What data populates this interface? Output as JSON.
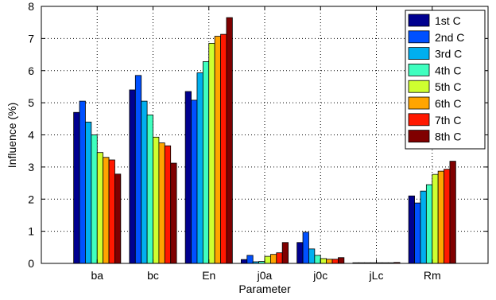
{
  "chart_data": {
    "type": "bar",
    "categories": [
      "ba",
      "bc",
      "En",
      "j0a",
      "j0c",
      "jLc",
      "Rm"
    ],
    "series": [
      {
        "name": "1st C",
        "color": "#00008F",
        "values": [
          4.7,
          5.4,
          5.35,
          0.12,
          0.65,
          0.02,
          2.1
        ]
      },
      {
        "name": "2nd C",
        "color": "#0050FF",
        "values": [
          5.05,
          5.85,
          5.08,
          0.25,
          0.97,
          0.02,
          1.88
        ]
      },
      {
        "name": "3rd C",
        "color": "#00AFEF",
        "values": [
          4.4,
          5.05,
          5.93,
          0.05,
          0.45,
          0.02,
          2.25
        ]
      },
      {
        "name": "4th C",
        "color": "#3FFFBF",
        "values": [
          4.0,
          4.62,
          6.28,
          0.06,
          0.25,
          0.02,
          2.45
        ]
      },
      {
        "name": "5th C",
        "color": "#CFFF30",
        "values": [
          3.45,
          3.93,
          6.85,
          0.22,
          0.15,
          0.02,
          2.77
        ]
      },
      {
        "name": "6th C",
        "color": "#FFA500",
        "values": [
          3.3,
          3.75,
          7.07,
          0.28,
          0.13,
          0.02,
          2.87
        ]
      },
      {
        "name": "7th C",
        "color": "#FF1800",
        "values": [
          3.22,
          3.66,
          7.13,
          0.33,
          0.13,
          0.02,
          2.93
        ]
      },
      {
        "name": "8th C",
        "color": "#800000",
        "values": [
          2.78,
          3.12,
          7.65,
          0.65,
          0.18,
          0.03,
          3.18
        ]
      }
    ],
    "xlabel": "Parameter",
    "ylabel": "Influence (%)",
    "ylim": [
      0,
      8
    ],
    "yticks": [
      0,
      1,
      2,
      3,
      4,
      5,
      6,
      7,
      8
    ],
    "grid": true,
    "legend_position": "top-right"
  }
}
